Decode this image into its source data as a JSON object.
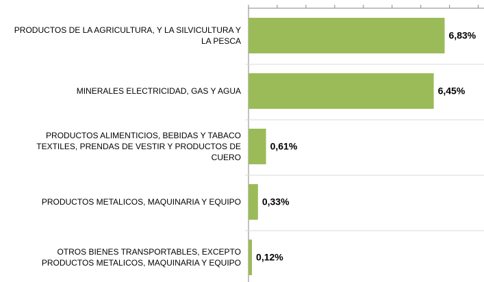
{
  "chart_data": {
    "type": "bar",
    "orientation": "horizontal",
    "categories": [
      "PRODUCTOS DE LA AGRICULTURA, Y LA SILVICULTURA Y LA PESCA",
      "MINERALES ELECTRICIDAD, GAS Y AGUA",
      "PRODUCTOS ALIMENTICIOS, BEBIDAS Y TABACO TEXTILES, PRENDAS DE VESTIR Y PRODUCTOS DE CUERO",
      "PRODUCTOS METALICOS, MAQUINARIA Y EQUIPO",
      "OTROS BIENES TRANSPORTABLES, EXCEPTO PRODUCTOS METALICOS, MAQUINARIA Y EQUIPO"
    ],
    "values": [
      6.83,
      6.45,
      0.61,
      0.33,
      0.12
    ],
    "value_labels": [
      "6,83%",
      "6,45%",
      "0,61%",
      "0,33%",
      "0,12%"
    ],
    "color": "#9bbb59",
    "xlim": [
      0,
      8.2
    ],
    "xticks": [
      0,
      1,
      2,
      3,
      4,
      5,
      6,
      7,
      8
    ]
  }
}
